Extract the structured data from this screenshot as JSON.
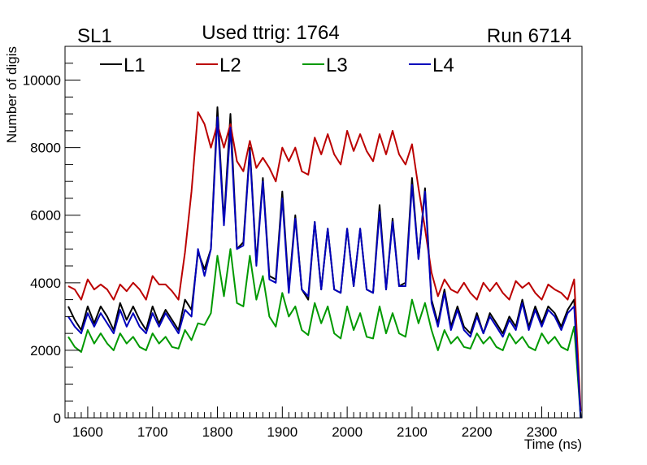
{
  "header": {
    "left": "SL1",
    "center": "Used ttrig: 1764",
    "right": "Run 6714"
  },
  "chart_data": {
    "type": "line",
    "title": "",
    "xlabel": "Time (ns)",
    "ylabel": "Number of digis",
    "xlim": [
      1565,
      2362
    ],
    "ylim": [
      0,
      11000
    ],
    "x_ticks": [
      1600,
      1700,
      1800,
      1900,
      2000,
      2100,
      2200,
      2300
    ],
    "y_ticks": [
      0,
      2000,
      4000,
      6000,
      8000,
      10000
    ],
    "grid": false,
    "legend": "top-left, horizontal",
    "x": [
      1570,
      1580,
      1590,
      1600,
      1610,
      1620,
      1630,
      1640,
      1650,
      1660,
      1670,
      1680,
      1690,
      1700,
      1710,
      1720,
      1730,
      1740,
      1750,
      1760,
      1770,
      1780,
      1790,
      1800,
      1810,
      1820,
      1830,
      1840,
      1850,
      1860,
      1870,
      1880,
      1890,
      1900,
      1910,
      1920,
      1930,
      1940,
      1950,
      1960,
      1970,
      1980,
      1990,
      2000,
      2010,
      2020,
      2030,
      2040,
      2050,
      2060,
      2070,
      2080,
      2090,
      2100,
      2110,
      2120,
      2130,
      2140,
      2150,
      2160,
      2170,
      2180,
      2190,
      2200,
      2210,
      2220,
      2230,
      2240,
      2250,
      2260,
      2270,
      2280,
      2290,
      2300,
      2310,
      2320,
      2330,
      2340,
      2350,
      2360
    ],
    "series": [
      {
        "name": "L1",
        "color": "#000000",
        "values": [
          3300,
          2900,
          2600,
          3300,
          2800,
          3300,
          3000,
          2600,
          3400,
          2900,
          3300,
          2900,
          2600,
          3300,
          2800,
          3200,
          2900,
          2600,
          3500,
          3200,
          4900,
          4400,
          5000,
          9200,
          5800,
          9000,
          5000,
          5200,
          8000,
          4600,
          7100,
          4200,
          4100,
          6700,
          3800,
          6000,
          3800,
          3500,
          5800,
          3800,
          5600,
          3800,
          3700,
          5600,
          3900,
          5600,
          3800,
          3700,
          6300,
          3800,
          5900,
          3900,
          4000,
          7100,
          4700,
          6800,
          3500,
          2800,
          3800,
          2700,
          3300,
          2700,
          2500,
          3100,
          2500,
          3100,
          2800,
          2500,
          3000,
          2700,
          3500,
          2700,
          3300,
          2800,
          3300,
          3100,
          2700,
          3200,
          3500,
          0
        ]
      },
      {
        "name": "L2",
        "color": "#bb0000",
        "values": [
          3900,
          3800,
          3500,
          4100,
          3800,
          3950,
          3800,
          3500,
          3950,
          3750,
          4000,
          3800,
          3500,
          4200,
          3950,
          3950,
          3750,
          3500,
          4900,
          6700,
          9050,
          8700,
          8000,
          8700,
          8000,
          8700,
          7600,
          7300,
          8200,
          7400,
          7700,
          7400,
          7000,
          8000,
          7600,
          8000,
          7300,
          7200,
          8300,
          7800,
          8400,
          7800,
          7500,
          8500,
          7900,
          8400,
          7900,
          7600,
          8400,
          7800,
          8500,
          7800,
          7500,
          8100,
          6800,
          5600,
          4300,
          3600,
          4100,
          3800,
          3700,
          4000,
          3700,
          3500,
          4000,
          3750,
          4000,
          3700,
          3500,
          4050,
          3850,
          4000,
          3700,
          3500,
          3950,
          3800,
          3700,
          3500,
          4100,
          200
        ]
      },
      {
        "name": "L3",
        "color": "#009900",
        "values": [
          2400,
          2100,
          1950,
          2600,
          2200,
          2500,
          2200,
          2000,
          2500,
          2200,
          2400,
          2100,
          2000,
          2500,
          2200,
          2400,
          2100,
          2050,
          2600,
          2300,
          2800,
          2750,
          3100,
          4800,
          3600,
          5000,
          3400,
          3300,
          4800,
          3500,
          4200,
          3000,
          2700,
          3700,
          3000,
          3300,
          2600,
          2450,
          3400,
          2800,
          3300,
          2500,
          2350,
          3300,
          2600,
          3100,
          2400,
          2350,
          3300,
          2500,
          3100,
          2500,
          2400,
          3500,
          2800,
          3400,
          2600,
          2000,
          2600,
          2200,
          2400,
          2100,
          2050,
          2500,
          2200,
          2400,
          2100,
          2000,
          2500,
          2200,
          2400,
          2100,
          2000,
          2500,
          2200,
          2400,
          2100,
          2000,
          2700,
          0
        ]
      },
      {
        "name": "L4",
        "color": "#0000bb",
        "values": [
          3000,
          2700,
          2500,
          3100,
          2700,
          3100,
          2800,
          2500,
          3200,
          2700,
          3100,
          2700,
          2500,
          3100,
          2700,
          3100,
          2800,
          2500,
          3200,
          3000,
          5000,
          4200,
          5000,
          8900,
          5700,
          8600,
          5000,
          5100,
          7900,
          4500,
          7000,
          4100,
          4000,
          6500,
          3700,
          5900,
          3800,
          3600,
          5800,
          3800,
          5600,
          3800,
          3700,
          5600,
          3900,
          5600,
          3800,
          3700,
          6100,
          3800,
          5800,
          3900,
          3900,
          6900,
          4700,
          6700,
          3400,
          2700,
          3700,
          2600,
          3200,
          2600,
          2400,
          3000,
          2500,
          3000,
          2700,
          2400,
          2900,
          2600,
          3400,
          2600,
          3200,
          2700,
          3200,
          3000,
          2600,
          3100,
          3300,
          0
        ]
      }
    ]
  }
}
